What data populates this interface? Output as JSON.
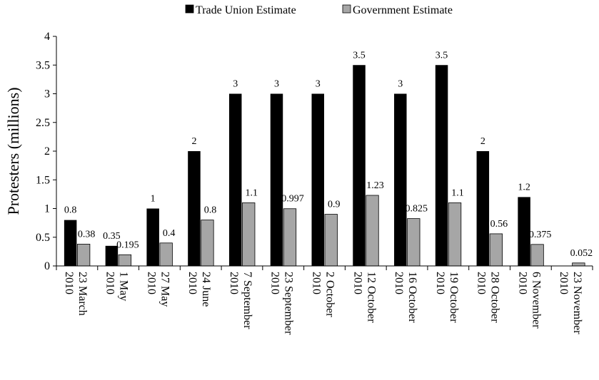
{
  "chart_data": {
    "type": "bar",
    "title": "",
    "xlabel": "",
    "ylabel": "Protesters (millions)",
    "ylim": [
      0,
      4
    ],
    "yticks": [
      "0",
      "0.5",
      "1",
      "1.5",
      "2",
      "2.5",
      "3",
      "3.5",
      "4"
    ],
    "grid": false,
    "legend_position": "top-center",
    "categories": [
      "23 March 2010",
      "1 May 2010",
      "27 May 2010",
      "24 June 2010",
      "7 September 2010",
      "23 September 2010",
      "2 October 2010",
      "12 October 2010",
      "16 October 2010",
      "19 October 2010",
      "28 October 2010",
      "6 November 2010",
      "23 November 2010"
    ],
    "series": [
      {
        "name": "Trade Union Estimate",
        "color": "#000000",
        "values": [
          0.8,
          0.35,
          1,
          2,
          3,
          3,
          3,
          3.5,
          3,
          3.5,
          2,
          1.2,
          null
        ],
        "labels": [
          "0.8",
          "0.35",
          "1",
          "2",
          "3",
          "3",
          "3",
          "3.5",
          "3",
          "3.5",
          "2",
          "1.2",
          ""
        ]
      },
      {
        "name": "Government Estimate",
        "color": "#a6a6a6",
        "values": [
          0.38,
          0.195,
          0.4,
          0.8,
          1.1,
          0.997,
          0.9,
          1.23,
          0.825,
          1.1,
          0.56,
          0.375,
          0.052
        ],
        "labels": [
          "0.38",
          "0.195",
          "0.4",
          "0.8",
          "1.1",
          "0.997",
          "0.9",
          "1.23",
          "0.825",
          "1.1",
          "0.56",
          "0.375",
          "0.052"
        ]
      }
    ]
  }
}
